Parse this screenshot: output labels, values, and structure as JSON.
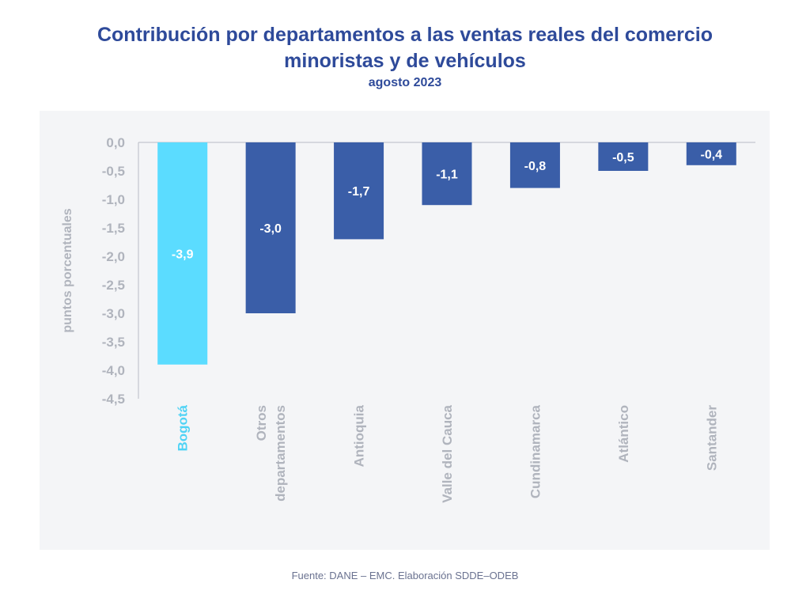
{
  "header": {
    "title_line1": "Contribución por departamentos a las ventas reales del comercio",
    "title_line2": "minoristas y de vehículos",
    "subtitle": "agosto 2023"
  },
  "footer": {
    "source": "Fuente: DANE – EMC. Elaboración SDDE–ODEB"
  },
  "colors": {
    "highlight": "#5bdcff",
    "bar": "#3a5ea8",
    "highlight_label": "#4fd3f5",
    "axis_text": "#b0b4bd",
    "title": "#2e4a9a"
  },
  "chart_data": {
    "type": "bar",
    "title": "Contribución por departamentos a las ventas reales del comercio minoristas y de vehículos",
    "subtitle": "agosto 2023",
    "xlabel": "",
    "ylabel": "puntos porcentuales",
    "categories": [
      [
        "Bogotá"
      ],
      [
        "Otros",
        "departamentos"
      ],
      [
        "Antioquia"
      ],
      [
        "Valle del Cauca"
      ],
      [
        "Cundinamarca"
      ],
      [
        "Atlántico"
      ],
      [
        "Santander"
      ]
    ],
    "values": [
      -3.9,
      -3.0,
      -1.7,
      -1.1,
      -0.8,
      -0.5,
      -0.4
    ],
    "value_labels": [
      "-3,9",
      "-3,0",
      "-1,7",
      "-1,1",
      "-0,8",
      "-0,5",
      "-0,4"
    ],
    "highlight_index": 0,
    "ylim": [
      -4.5,
      0
    ],
    "yticks": [
      "0,0",
      "-0,5",
      "-1,0",
      "-1,5",
      "-2,0",
      "-2,5",
      "-3,0",
      "-3,5",
      "-4,0",
      "-4,5"
    ],
    "grid": false,
    "legend": "none"
  }
}
